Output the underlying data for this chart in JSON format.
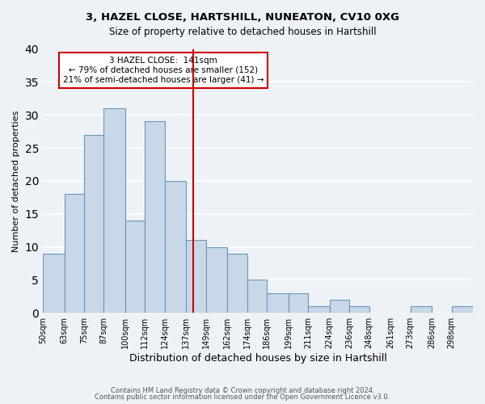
{
  "title1": "3, HAZEL CLOSE, HARTSHILL, NUNEATON, CV10 0XG",
  "title2": "Size of property relative to detached houses in Hartshill",
  "xlabel": "Distribution of detached houses by size in Hartshill",
  "ylabel": "Number of detached properties",
  "bar_edges": [
    50,
    63,
    75,
    87,
    100,
    112,
    124,
    137,
    149,
    162,
    174,
    186,
    199,
    211,
    224,
    236,
    248,
    261,
    273,
    286,
    298,
    311
  ],
  "bar_heights": [
    9,
    18,
    27,
    31,
    14,
    29,
    20,
    11,
    10,
    9,
    5,
    3,
    3,
    1,
    2,
    1,
    0,
    0,
    1,
    0,
    1
  ],
  "bar_color": "#c8d8e8",
  "bar_edge_color": "#6699bb",
  "ylim": [
    0,
    40
  ],
  "yticks": [
    0,
    5,
    10,
    15,
    20,
    25,
    30,
    35,
    40
  ],
  "property_value": 141,
  "vline_color": "#cc0000",
  "annotation_title": "3 HAZEL CLOSE:  141sqm",
  "annotation_line1": "← 79% of detached houses are smaller (152)",
  "annotation_line2": "21% of semi-detached houses are larger (41) →",
  "annotation_box_color": "#ffffff",
  "annotation_box_edge": "#cc0000",
  "footer1": "Contains HM Land Registry data © Crown copyright and database right 2024.",
  "footer2": "Contains public sector information licensed under the Open Government Licence v3.0.",
  "bg_color": "#eef2f7",
  "grid_color": "#ffffff",
  "tick_labels": [
    "50sqm",
    "63sqm",
    "75sqm",
    "87sqm",
    "100sqm",
    "112sqm",
    "124sqm",
    "137sqm",
    "149sqm",
    "162sqm",
    "174sqm",
    "186sqm",
    "199sqm",
    "211sqm",
    "224sqm",
    "236sqm",
    "248sqm",
    "261sqm",
    "273sqm",
    "286sqm",
    "298sqm"
  ]
}
